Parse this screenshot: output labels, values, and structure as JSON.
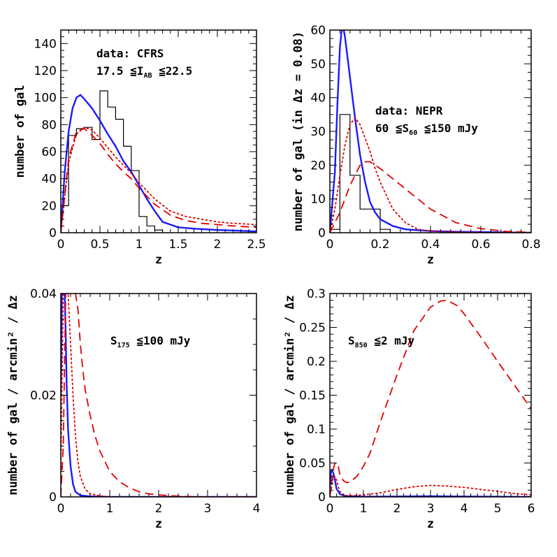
{
  "chart_data": [
    {
      "type": "line",
      "xlabel": "z",
      "ylabel": "number of gal",
      "xlim": [
        0,
        2.5
      ],
      "ylim": [
        0,
        150
      ],
      "xticks": [
        0,
        0.5,
        1,
        1.5,
        2,
        2.5
      ],
      "xtick_labels": [
        "0",
        "0.5",
        "1",
        "1.5",
        "2",
        "2.5"
      ],
      "yticks": [
        0,
        20,
        40,
        60,
        80,
        100,
        120,
        140
      ],
      "ytick_labels": [
        "0",
        "20",
        "40",
        "60",
        "80",
        "100",
        "120",
        "140"
      ],
      "annotation": {
        "line1": "data: CFRS",
        "line2_parts": [
          "17.5 ≦I",
          "AB",
          " ≦22.5"
        ]
      },
      "histogram": {
        "name": "data",
        "color": "#000000",
        "edges": [
          0,
          0.1,
          0.2,
          0.3,
          0.4,
          0.5,
          0.6,
          0.7,
          0.8,
          0.9,
          1.0,
          1.1,
          1.2,
          1.3
        ],
        "counts": [
          20,
          72,
          77,
          78,
          69,
          105,
          93,
          84,
          64,
          46,
          12,
          5,
          2
        ]
      },
      "series": [
        {
          "style": "solid",
          "color": "#1a1aff",
          "x": [
            0,
            0.05,
            0.1,
            0.15,
            0.2,
            0.25,
            0.3,
            0.4,
            0.5,
            0.6,
            0.7,
            0.8,
            0.9,
            1.0,
            1.1,
            1.2,
            1.3,
            1.5,
            1.7,
            2.0,
            2.5
          ],
          "y": [
            0,
            45,
            75,
            92,
            100,
            102,
            99,
            92,
            83,
            73,
            64,
            53,
            45,
            35,
            25,
            16,
            8,
            4,
            3,
            2,
            1
          ]
        },
        {
          "style": "dotted",
          "color": "#e00000",
          "x": [
            0,
            0.1,
            0.2,
            0.3,
            0.4,
            0.5,
            0.6,
            0.7,
            0.8,
            0.9,
            1.0,
            1.2,
            1.4,
            1.6,
            1.8,
            2.0,
            2.2,
            2.5
          ],
          "y": [
            0,
            52,
            73,
            78,
            76,
            70,
            63,
            56,
            50,
            44,
            37,
            25,
            16,
            12,
            10,
            8,
            7,
            6
          ]
        },
        {
          "style": "dashed",
          "color": "#e00000",
          "x": [
            0,
            0.1,
            0.2,
            0.3,
            0.4,
            0.5,
            0.6,
            0.7,
            0.8,
            0.9,
            1.0,
            1.2,
            1.4,
            1.6,
            1.8,
            2.0,
            2.2,
            2.5
          ],
          "y": [
            0,
            55,
            75,
            77,
            72,
            66,
            58,
            51,
            45,
            40,
            33,
            21,
            13,
            9,
            7,
            6,
            5,
            4
          ]
        }
      ]
    },
    {
      "type": "line",
      "xlabel": "z",
      "ylabel": "number of gal (in Δz = 0.08)",
      "xlim": [
        0,
        0.8
      ],
      "ylim": [
        0,
        60
      ],
      "xticks": [
        0,
        0.2,
        0.4,
        0.6,
        0.8
      ],
      "xtick_labels": [
        "0",
        "0.2",
        "0.4",
        "0.6",
        "0.8"
      ],
      "yticks": [
        0,
        10,
        20,
        30,
        40,
        50,
        60
      ],
      "ytick_labels": [
        "0",
        "10",
        "20",
        "30",
        "40",
        "50",
        "60"
      ],
      "annotation": {
        "line1": "data: NEPR",
        "line2_parts": [
          "60 ≦S",
          "60",
          " ≦150 mJy"
        ]
      },
      "histogram": {
        "name": "data",
        "color": "#000000",
        "edges": [
          0,
          0.04,
          0.08,
          0.12,
          0.16,
          0.2,
          0.24,
          0.28
        ],
        "counts": [
          1,
          35,
          17,
          7,
          7,
          1,
          0
        ]
      },
      "series": [
        {
          "style": "solid",
          "color": "#1a1aff",
          "x": [
            0,
            0.02,
            0.03,
            0.04,
            0.05,
            0.06,
            0.07,
            0.08,
            0.1,
            0.12,
            0.14,
            0.16,
            0.18,
            0.2,
            0.25,
            0.3,
            0.4,
            0.5,
            0.6,
            0.7,
            0.8
          ],
          "y": [
            0,
            18,
            38,
            55,
            62,
            58,
            52,
            46,
            34,
            23,
            15,
            9,
            6,
            4,
            2,
            1,
            0.5,
            0.3,
            0.2,
            0.1,
            0
          ]
        },
        {
          "style": "dotted",
          "color": "#e00000",
          "x": [
            0,
            0.02,
            0.04,
            0.06,
            0.08,
            0.1,
            0.12,
            0.14,
            0.16,
            0.18,
            0.2,
            0.25,
            0.3,
            0.35,
            0.4,
            0.5,
            0.6,
            0.7,
            0.8
          ],
          "y": [
            0,
            7,
            17,
            26,
            32,
            34,
            32,
            28,
            24,
            19,
            15,
            7,
            3,
            1,
            0.5,
            0.2,
            0.1,
            0,
            0
          ]
        },
        {
          "style": "dashed",
          "color": "#e00000",
          "x": [
            0,
            0.02,
            0.04,
            0.06,
            0.08,
            0.1,
            0.12,
            0.14,
            0.16,
            0.18,
            0.2,
            0.25,
            0.3,
            0.35,
            0.4,
            0.45,
            0.5,
            0.6,
            0.7,
            0.8
          ],
          "y": [
            0,
            3,
            6,
            10,
            14,
            17,
            20,
            21,
            21,
            20,
            19,
            16,
            13,
            10,
            7,
            5,
            3,
            1.2,
            0.4,
            0.1
          ]
        }
      ]
    },
    {
      "type": "line",
      "xlabel": "z",
      "ylabel": "number of gal / arcmin² / Δz",
      "xlim": [
        0,
        4
      ],
      "ylim": [
        0,
        0.04
      ],
      "xticks": [
        0,
        1,
        2,
        3,
        4
      ],
      "xtick_labels": [
        "0",
        "1",
        "2",
        "3",
        "4"
      ],
      "yticks": [
        0,
        0.02,
        0.04
      ],
      "ytick_labels": [
        "0",
        "0.02",
        "0.04"
      ],
      "annotation": {
        "line1_parts": [
          "S",
          "175",
          " ≦100 mJy"
        ]
      },
      "series": [
        {
          "style": "solid",
          "color": "#1a1aff",
          "x": [
            0,
            0.02,
            0.05,
            0.08,
            0.1,
            0.12,
            0.15,
            0.2,
            0.25,
            0.3,
            0.4,
            0.6,
            1.0,
            4.0
          ],
          "y": [
            0.02,
            0.04,
            0.04,
            0.04,
            0.032,
            0.022,
            0.013,
            0.006,
            0.0025,
            0.001,
            0.0003,
            0.0001,
            0,
            0
          ]
        },
        {
          "style": "dotted",
          "color": "#e00000",
          "x": [
            0,
            0.05,
            0.1,
            0.15,
            0.2,
            0.25,
            0.3,
            0.35,
            0.4,
            0.5,
            0.6,
            0.8,
            1.0,
            4.0
          ],
          "y": [
            0.005,
            0.04,
            0.04,
            0.04,
            0.03,
            0.02,
            0.012,
            0.007,
            0.004,
            0.0015,
            0.0006,
            0.0002,
            0,
            0
          ]
        },
        {
          "style": "dashed",
          "color": "#e00000",
          "x": [
            0,
            0.05,
            0.1,
            0.2,
            0.3,
            0.35,
            0.4,
            0.45,
            0.5,
            0.6,
            0.7,
            0.8,
            0.9,
            1.0,
            1.2,
            1.4,
            1.6,
            1.8,
            2.0,
            2.5,
            3.0,
            4.0
          ],
          "y": [
            0,
            0.01,
            0.04,
            0.04,
            0.04,
            0.037,
            0.03,
            0.025,
            0.021,
            0.016,
            0.012,
            0.009,
            0.007,
            0.005,
            0.003,
            0.0018,
            0.001,
            0.0006,
            0.0004,
            0.0001,
            0,
            0
          ]
        }
      ]
    },
    {
      "type": "line",
      "xlabel": "z",
      "ylabel": "number of gal / arcmin² / Δz",
      "xlim": [
        0,
        6
      ],
      "ylim": [
        0,
        0.3
      ],
      "xticks": [
        0,
        1,
        2,
        3,
        4,
        5,
        6
      ],
      "xtick_labels": [
        "0",
        "1",
        "2",
        "3",
        "4",
        "5",
        "6"
      ],
      "yticks": [
        0,
        0.05,
        0.1,
        0.15,
        0.2,
        0.25,
        0.3
      ],
      "ytick_labels": [
        "0",
        "0.05",
        "0.1",
        "0.15",
        "0.2",
        "0.25",
        "0.3"
      ],
      "annotation": {
        "line1_parts": [
          "S",
          "850",
          " ≦2 mJy"
        ]
      },
      "series": [
        {
          "style": "solid",
          "color": "#1a1aff",
          "x": [
            0,
            0.03,
            0.06,
            0.1,
            0.15,
            0.2,
            0.3,
            0.5,
            1.0,
            2.0,
            3.0,
            4.0,
            5.0,
            6.0
          ],
          "y": [
            0.01,
            0.036,
            0.04,
            0.036,
            0.025,
            0.012,
            0.004,
            0.001,
            0.0003,
            0.0005,
            0.001,
            0.0006,
            0.0003,
            0.0001
          ]
        },
        {
          "style": "dotted",
          "color": "#e00000",
          "x": [
            0,
            0.05,
            0.1,
            0.15,
            0.2,
            0.25,
            0.3,
            0.4,
            0.5,
            0.7,
            1.0,
            1.5,
            2.0,
            2.5,
            3.0,
            3.5,
            4.0,
            4.5,
            5.0,
            5.5,
            6.0
          ],
          "y": [
            0,
            0.015,
            0.03,
            0.03,
            0.025,
            0.015,
            0.008,
            0.003,
            0.002,
            0.002,
            0.003,
            0.006,
            0.011,
            0.015,
            0.017,
            0.016,
            0.014,
            0.011,
            0.008,
            0.005,
            0.003
          ]
        },
        {
          "style": "dashed",
          "color": "#e00000",
          "x": [
            0,
            0.05,
            0.1,
            0.15,
            0.2,
            0.25,
            0.3,
            0.4,
            0.5,
            0.6,
            0.8,
            1.0,
            1.2,
            1.5,
            2.0,
            2.5,
            3.0,
            3.3,
            3.5,
            3.8,
            4.0,
            4.5,
            5.0,
            5.5,
            6.0
          ],
          "y": [
            0,
            0.02,
            0.04,
            0.05,
            0.05,
            0.045,
            0.032,
            0.024,
            0.021,
            0.022,
            0.03,
            0.045,
            0.065,
            0.11,
            0.18,
            0.245,
            0.28,
            0.289,
            0.29,
            0.282,
            0.27,
            0.236,
            0.2,
            0.165,
            0.13
          ]
        }
      ]
    }
  ]
}
